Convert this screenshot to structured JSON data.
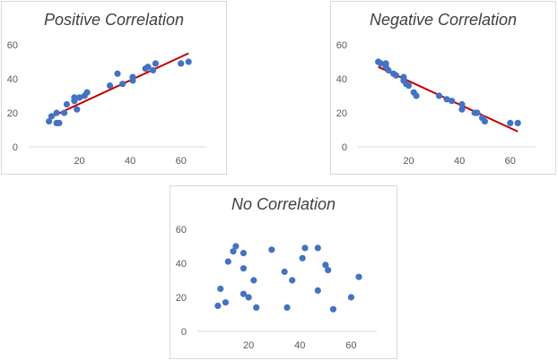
{
  "chart_data": [
    {
      "type": "scatter",
      "title": "Positive Correlation",
      "xlim": [
        0,
        70
      ],
      "ylim": [
        0,
        60
      ],
      "xticks": [
        20,
        40,
        60
      ],
      "yticks": [
        0,
        20,
        40,
        60
      ],
      "point_color": "#4472c4",
      "trendline": {
        "color": "#c00000",
        "from": [
          8,
          17
        ],
        "to": [
          63,
          55
        ]
      },
      "points": [
        {
          "x": 8,
          "y": 15
        },
        {
          "x": 9,
          "y": 18
        },
        {
          "x": 11,
          "y": 20
        },
        {
          "x": 11,
          "y": 14
        },
        {
          "x": 12,
          "y": 14
        },
        {
          "x": 14,
          "y": 20
        },
        {
          "x": 15,
          "y": 25
        },
        {
          "x": 18,
          "y": 27
        },
        {
          "x": 18,
          "y": 29
        },
        {
          "x": 19,
          "y": 22
        },
        {
          "x": 20,
          "y": 29
        },
        {
          "x": 22,
          "y": 30
        },
        {
          "x": 23,
          "y": 32
        },
        {
          "x": 32,
          "y": 36
        },
        {
          "x": 35,
          "y": 43
        },
        {
          "x": 37,
          "y": 37
        },
        {
          "x": 41,
          "y": 39
        },
        {
          "x": 41,
          "y": 41
        },
        {
          "x": 46,
          "y": 46
        },
        {
          "x": 47,
          "y": 47
        },
        {
          "x": 49,
          "y": 45
        },
        {
          "x": 50,
          "y": 49
        },
        {
          "x": 60,
          "y": 49
        },
        {
          "x": 63,
          "y": 50
        }
      ]
    },
    {
      "type": "scatter",
      "title": "Negative Correlation",
      "xlim": [
        0,
        70
      ],
      "ylim": [
        0,
        60
      ],
      "xticks": [
        20,
        40,
        60
      ],
      "yticks": [
        0,
        20,
        40,
        60
      ],
      "point_color": "#4472c4",
      "trendline": {
        "color": "#c00000",
        "from": [
          8,
          47
        ],
        "to": [
          63,
          9
        ]
      },
      "points": [
        {
          "x": 8,
          "y": 50
        },
        {
          "x": 9,
          "y": 49
        },
        {
          "x": 11,
          "y": 49
        },
        {
          "x": 11,
          "y": 47
        },
        {
          "x": 12,
          "y": 45
        },
        {
          "x": 14,
          "y": 43
        },
        {
          "x": 15,
          "y": 42
        },
        {
          "x": 18,
          "y": 41
        },
        {
          "x": 18,
          "y": 39
        },
        {
          "x": 19,
          "y": 37
        },
        {
          "x": 20,
          "y": 36
        },
        {
          "x": 22,
          "y": 32
        },
        {
          "x": 23,
          "y": 30
        },
        {
          "x": 32,
          "y": 30
        },
        {
          "x": 35,
          "y": 28
        },
        {
          "x": 37,
          "y": 27
        },
        {
          "x": 41,
          "y": 25
        },
        {
          "x": 41,
          "y": 22
        },
        {
          "x": 46,
          "y": 20
        },
        {
          "x": 47,
          "y": 20
        },
        {
          "x": 49,
          "y": 17
        },
        {
          "x": 50,
          "y": 15
        },
        {
          "x": 60,
          "y": 14
        },
        {
          "x": 63,
          "y": 14
        }
      ]
    },
    {
      "type": "scatter",
      "title": "No Correlation",
      "xlim": [
        0,
        70
      ],
      "ylim": [
        0,
        60
      ],
      "xticks": [
        20,
        40,
        60
      ],
      "yticks": [
        0,
        20,
        40,
        60
      ],
      "point_color": "#4472c4",
      "points": [
        {
          "x": 8,
          "y": 15
        },
        {
          "x": 9,
          "y": 25
        },
        {
          "x": 11,
          "y": 17
        },
        {
          "x": 12,
          "y": 41
        },
        {
          "x": 14,
          "y": 47
        },
        {
          "x": 15,
          "y": 50
        },
        {
          "x": 18,
          "y": 46
        },
        {
          "x": 18,
          "y": 37
        },
        {
          "x": 18,
          "y": 22
        },
        {
          "x": 20,
          "y": 20
        },
        {
          "x": 22,
          "y": 30
        },
        {
          "x": 23,
          "y": 14
        },
        {
          "x": 29,
          "y": 48
        },
        {
          "x": 34,
          "y": 35
        },
        {
          "x": 35,
          "y": 14
        },
        {
          "x": 37,
          "y": 30
        },
        {
          "x": 41,
          "y": 43
        },
        {
          "x": 42,
          "y": 49
        },
        {
          "x": 47,
          "y": 24
        },
        {
          "x": 47,
          "y": 49
        },
        {
          "x": 50,
          "y": 39
        },
        {
          "x": 51,
          "y": 36
        },
        {
          "x": 53,
          "y": 13
        },
        {
          "x": 60,
          "y": 20
        },
        {
          "x": 63,
          "y": 32
        }
      ]
    }
  ]
}
